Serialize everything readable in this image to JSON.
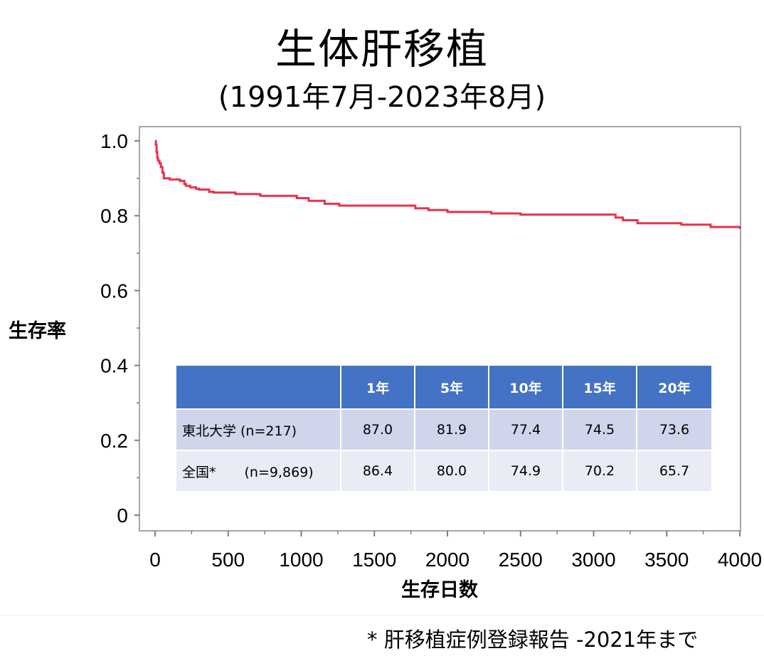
{
  "title": "生体肝移植",
  "subtitle": "(1991年7月-2023年8月)",
  "footnote": "* 肝移植症例登録報告 -2021年まで",
  "colors": {
    "line": "#e8334a",
    "table_header_bg": "#4472c4",
    "table_row1_bg": "#cfd5ea",
    "table_row2_bg": "#e9ebf5"
  },
  "chart_data": {
    "type": "line",
    "title": "",
    "xlabel": "生存日数",
    "ylabel": "生存率",
    "xlim": [
      0,
      4000
    ],
    "ylim": [
      0,
      1.0
    ],
    "x_ticks": [
      "0",
      "500",
      "1000",
      "1500",
      "2000",
      "2500",
      "3000",
      "3500",
      "4000"
    ],
    "y_ticks": [
      "0",
      "0.2",
      "0.4",
      "0.6",
      "0.8",
      "1.0"
    ],
    "grid": false,
    "step": true,
    "series": [
      {
        "name": "",
        "x": [
          0,
          5,
          10,
          15,
          20,
          30,
          40,
          50,
          60,
          100,
          170,
          200,
          210,
          240,
          280,
          300,
          370,
          400,
          550,
          720,
          970,
          1050,
          1160,
          1260,
          1780,
          1870,
          2000,
          2300,
          2500,
          3150,
          3200,
          3300,
          3600,
          3800,
          4000
        ],
        "y": [
          1.0,
          0.99,
          0.97,
          0.955,
          0.947,
          0.94,
          0.93,
          0.915,
          0.9,
          0.897,
          0.893,
          0.885,
          0.88,
          0.876,
          0.872,
          0.87,
          0.864,
          0.862,
          0.858,
          0.853,
          0.847,
          0.84,
          0.832,
          0.827,
          0.82,
          0.815,
          0.81,
          0.806,
          0.803,
          0.795,
          0.788,
          0.78,
          0.776,
          0.77,
          0.765
        ]
      }
    ]
  },
  "table": {
    "headers": [
      "",
      "1年",
      "5年",
      "10年",
      "15年",
      "20年"
    ],
    "rows": [
      {
        "label": "東北大学",
        "n": "(n=217)",
        "values": [
          "87.0",
          "81.9",
          "77.4",
          "74.5",
          "73.6"
        ]
      },
      {
        "label": "全国*",
        "n": "(n=9,869)",
        "values": [
          "86.4",
          "80.0",
          "74.9",
          "70.2",
          "65.7"
        ]
      }
    ]
  }
}
